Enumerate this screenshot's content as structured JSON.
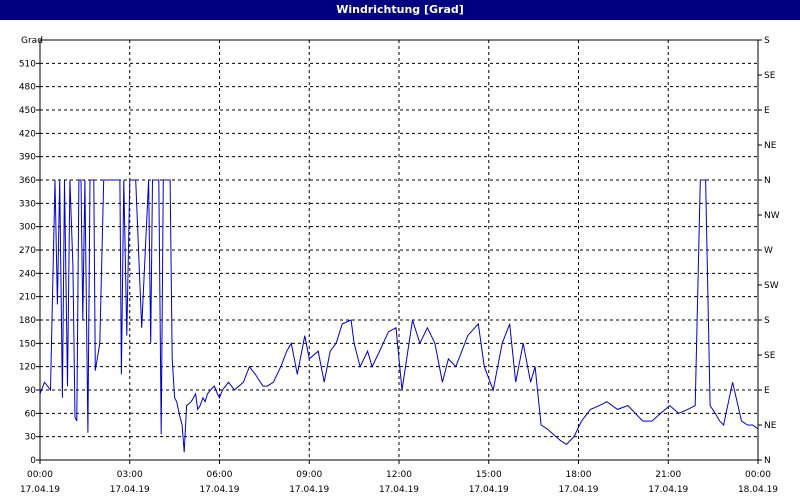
{
  "window": {
    "title": "Windrichtung [Grad]"
  },
  "chart_data": {
    "type": "line",
    "title": "Windrichtung [Grad]",
    "ylabel": "Grad",
    "ylim": [
      0,
      540
    ],
    "yticks": [
      0,
      30,
      60,
      90,
      120,
      150,
      180,
      210,
      240,
      270,
      300,
      330,
      360,
      390,
      420,
      450,
      480,
      510
    ],
    "right_axis_labels": [
      "N",
      "NE",
      "E",
      "SE",
      "S",
      "SW",
      "W",
      "NW",
      "N",
      "NE",
      "E",
      "SE",
      "S"
    ],
    "right_axis_values": [
      0,
      45,
      90,
      135,
      180,
      225,
      270,
      315,
      360,
      405,
      450,
      495,
      540
    ],
    "xlim_hours": [
      0,
      24
    ],
    "xticks": [
      {
        "time": "00:00",
        "date": "17.04.19",
        "hour": 0
      },
      {
        "time": "03:00",
        "date": "17.04.19",
        "hour": 3
      },
      {
        "time": "06:00",
        "date": "17.04.19",
        "hour": 6
      },
      {
        "time": "09:00",
        "date": "17.04.19",
        "hour": 9
      },
      {
        "time": "12:00",
        "date": "17.04.19",
        "hour": 12
      },
      {
        "time": "15:00",
        "date": "17.04.19",
        "hour": 15
      },
      {
        "time": "18:00",
        "date": "17.04.19",
        "hour": 18
      },
      {
        "time": "21:00",
        "date": "17.04.19",
        "hour": 21
      },
      {
        "time": "00:00",
        "date": "18.04.19",
        "hour": 24
      }
    ],
    "grid": true,
    "line_color": "#0000cc",
    "series": [
      {
        "x": [
          0.0,
          0.15,
          0.35,
          0.5,
          0.58,
          0.66,
          0.75,
          0.82,
          0.92,
          1.0,
          1.1,
          1.17,
          1.23,
          1.3,
          1.37,
          1.43,
          1.5,
          1.6,
          1.67,
          1.73,
          1.8,
          1.85,
          2.0,
          2.13,
          2.2,
          2.3,
          2.38,
          2.45,
          2.5,
          2.6,
          2.67,
          2.72,
          2.8,
          2.9,
          3.0,
          3.2,
          3.4,
          3.63,
          3.7,
          3.76,
          3.83,
          3.9,
          3.97,
          4.05,
          4.12,
          4.2,
          4.27,
          4.35,
          4.42,
          4.5,
          4.57,
          4.65,
          4.75,
          4.82,
          4.9,
          5.05,
          5.13,
          5.2,
          5.27,
          5.35,
          5.45,
          5.52,
          5.6,
          5.7,
          5.83,
          5.93,
          6.0,
          6.1,
          6.3,
          6.5,
          6.65,
          6.8,
          7.0,
          7.2,
          7.45,
          7.6,
          7.8,
          8.05,
          8.25,
          8.4,
          8.6,
          8.85,
          9.0,
          9.3,
          9.5,
          9.7,
          9.9,
          10.1,
          10.4,
          10.5,
          10.7,
          10.95,
          11.1,
          11.35,
          11.65,
          11.9,
          12.1,
          12.45,
          12.7,
          12.95,
          13.2,
          13.45,
          13.65,
          13.9,
          14.3,
          14.65,
          14.85,
          15.15,
          15.45,
          15.7,
          15.9,
          16.15,
          16.4,
          16.55,
          16.75,
          16.95,
          17.25,
          17.4,
          17.6,
          17.85,
          18.1,
          18.4,
          18.7,
          18.95,
          19.3,
          19.65,
          19.9,
          20.15,
          20.45,
          20.75,
          21.05,
          21.35,
          21.65,
          21.9,
          22.07,
          22.13,
          22.25,
          22.4,
          22.57,
          22.72,
          22.85,
          23.15,
          23.45,
          23.65,
          23.82,
          24.0
        ],
        "y": [
          85,
          100,
          90,
          360,
          200,
          360,
          80,
          360,
          95,
          360,
          250,
          55,
          50,
          360,
          360,
          180,
          360,
          35,
          360,
          360,
          360,
          115,
          150,
          360,
          360,
          360,
          360,
          360,
          360,
          360,
          360,
          110,
          360,
          160,
          360,
          360,
          170,
          360,
          150,
          360,
          360,
          360,
          360,
          33,
          360,
          360,
          360,
          360,
          130,
          80,
          75,
          60,
          45,
          10,
          70,
          75,
          80,
          85,
          65,
          70,
          80,
          75,
          85,
          90,
          95,
          85,
          80,
          90,
          100,
          90,
          95,
          100,
          120,
          110,
          95,
          95,
          100,
          120,
          140,
          150,
          110,
          160,
          130,
          140,
          100,
          140,
          150,
          175,
          180,
          150,
          120,
          140,
          120,
          140,
          165,
          170,
          90,
          180,
          150,
          170,
          150,
          100,
          130,
          120,
          160,
          175,
          120,
          90,
          150,
          175,
          100,
          150,
          100,
          120,
          45,
          40,
          30,
          25,
          20,
          30,
          50,
          65,
          70,
          75,
          65,
          70,
          60,
          50,
          50,
          60,
          70,
          60,
          65,
          70,
          360,
          360,
          360,
          70,
          60,
          50,
          45,
          100,
          50,
          45,
          45,
          40
        ]
      }
    ]
  }
}
